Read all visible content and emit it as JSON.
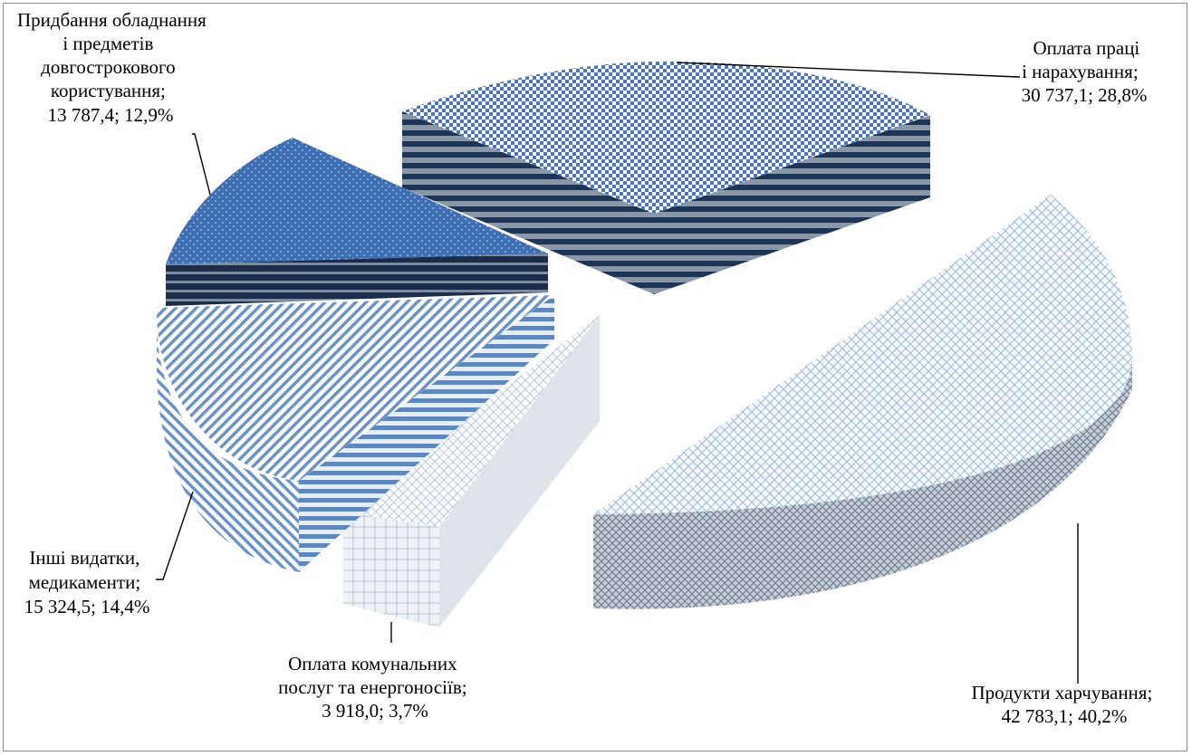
{
  "chart_data": {
    "type": "pie",
    "style": "3d-exploded",
    "slices": [
      {
        "key": "labor",
        "label_lines": [
          "Оплата праці",
          "і нарахування;",
          "30 737,1; 28,8%"
        ],
        "value": 30737.1,
        "percent": 28.8,
        "color": "#4a78b8"
      },
      {
        "key": "food",
        "label_lines": [
          "Продукти харчування;",
          "42 783,1; 40,2%"
        ],
        "value": 42783.1,
        "percent": 40.2,
        "color": "#8fb0d8"
      },
      {
        "key": "utilities",
        "label_lines": [
          "Оплата комунальних",
          "послуг та енергоносіїв;",
          "3 918,0; 3,7%"
        ],
        "value": 3918.0,
        "percent": 3.7,
        "color": "#a9c2e0"
      },
      {
        "key": "other",
        "label_lines": [
          "Інші видатки,",
          "медикаменти;",
          "15 324,5; 14,4%"
        ],
        "value": 15324.5,
        "percent": 14.4,
        "color": "#5b8bc6"
      },
      {
        "key": "equipment",
        "label_lines": [
          "Придбання обладнання",
          "і предметів",
          "довгострокового",
          "користування;",
          "13 787,4; 12,9%"
        ],
        "value": 13787.4,
        "percent": 12.9,
        "color": "#3f6fb3"
      }
    ]
  }
}
